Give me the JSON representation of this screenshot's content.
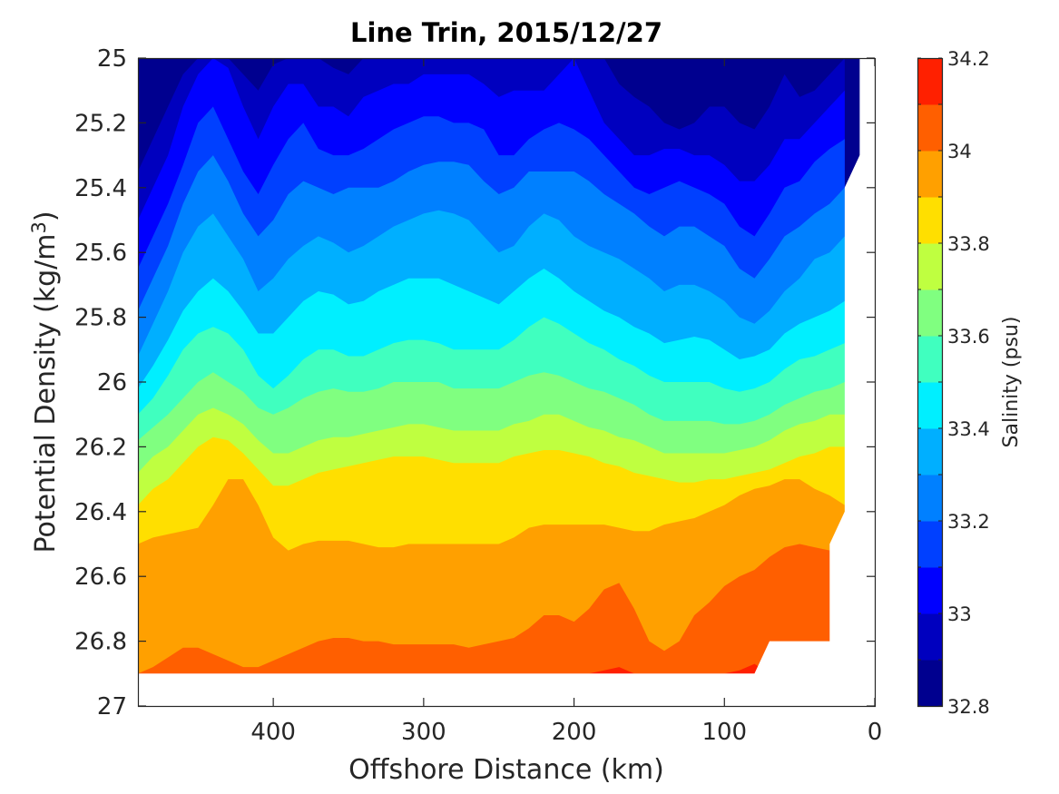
{
  "chart_data": {
    "type": "contour",
    "title": "Line Trin, 2015/12/27",
    "xlabel": "Offshore Distance (km)",
    "ylabel_main": "Potential Density (kg/m",
    "ylabel_sup": "3",
    "ylabel_close": ")",
    "xlim": [
      490,
      0
    ],
    "ylim": [
      25,
      27
    ],
    "x_ticks": [
      400,
      300,
      200,
      100,
      0
    ],
    "x_tick_labels": [
      "400",
      "300",
      "200",
      "100",
      "0"
    ],
    "y_ticks": [
      25,
      25.2,
      25.4,
      25.6,
      25.8,
      26,
      26.2,
      26.4,
      26.6,
      26.8,
      27
    ],
    "y_tick_labels": [
      "25",
      "25.2",
      "25.4",
      "25.6",
      "25.8",
      "26",
      "26.2",
      "26.4",
      "26.6",
      "26.8",
      "27"
    ],
    "y_reversed": true,
    "colorbar": {
      "label": "Salinity (psu)",
      "range": [
        32.8,
        34.2
      ],
      "step": 0.1,
      "tick_values": [
        34.2,
        34.0,
        33.8,
        33.6,
        33.4,
        33.2,
        33.0,
        32.8
      ],
      "tick_labels": [
        "34.2",
        "34",
        "33.8",
        "33.6",
        "33.4",
        "33.2",
        "33",
        "32.8"
      ],
      "colors": [
        "#00008f",
        "#0000bf",
        "#0000ff",
        "#0040ff",
        "#0080ff",
        "#00afff",
        "#00efff",
        "#40ffbf",
        "#80ff80",
        "#bfff40",
        "#ffdf00",
        "#ffa000",
        "#ff5f00",
        "#ff2000",
        "#bf0000"
      ]
    },
    "data_extent": {
      "x": [
        490,
        10
      ],
      "y_bottom_by_x": [
        [
          490,
          26.9
        ],
        [
          80,
          26.9
        ],
        [
          70,
          26.8
        ],
        [
          30,
          26.8
        ],
        [
          30,
          26.5
        ],
        [
          20,
          26.4
        ],
        [
          20,
          25.4
        ],
        [
          10,
          25.3
        ],
        [
          10,
          25
        ]
      ]
    },
    "x_distance": [
      490,
      480,
      470,
      460,
      450,
      440,
      430,
      420,
      410,
      400,
      390,
      380,
      370,
      360,
      350,
      340,
      330,
      320,
      310,
      300,
      290,
      280,
      270,
      260,
      250,
      240,
      230,
      220,
      210,
      200,
      190,
      180,
      170,
      160,
      150,
      140,
      130,
      120,
      110,
      100,
      90,
      80,
      70,
      60,
      50,
      40,
      30,
      20
    ],
    "isohaline_density": {
      "32.9": [
        25.35,
        25.25,
        25.15,
        25.05,
        25.0,
        25.0,
        25.0,
        25.05,
        25.1,
        25.02,
        25.0,
        25.0,
        25.0,
        25.03,
        25.05,
        25.0,
        25.0,
        25.0,
        25.0,
        25.0,
        25.0,
        25.0,
        25.0,
        25.0,
        25.0,
        25.0,
        25.0,
        25.0,
        25.0,
        25.0,
        25.0,
        25.0,
        25.08,
        25.12,
        25.15,
        25.2,
        25.22,
        25.2,
        25.15,
        25.15,
        25.2,
        25.22,
        25.15,
        25.05,
        25.12,
        25.1,
        25.05,
        25.0
      ],
      "33.0": [
        25.5,
        25.4,
        25.3,
        25.15,
        25.05,
        25.0,
        25.03,
        25.15,
        25.25,
        25.15,
        25.08,
        25.08,
        25.15,
        25.15,
        25.18,
        25.12,
        25.1,
        25.08,
        25.08,
        25.05,
        25.05,
        25.05,
        25.05,
        25.08,
        25.12,
        25.1,
        25.1,
        25.1,
        25.05,
        25.0,
        25.1,
        25.2,
        25.25,
        25.3,
        25.3,
        25.28,
        25.28,
        25.3,
        25.3,
        25.33,
        25.38,
        25.38,
        25.33,
        25.25,
        25.25,
        25.2,
        25.15,
        25.1
      ],
      "33.1": [
        25.65,
        25.55,
        25.45,
        25.33,
        25.2,
        25.15,
        25.25,
        25.35,
        25.42,
        25.33,
        25.25,
        25.2,
        25.28,
        25.3,
        25.3,
        25.28,
        25.25,
        25.22,
        25.2,
        25.18,
        25.18,
        25.2,
        25.2,
        25.22,
        25.3,
        25.3,
        25.25,
        25.22,
        25.2,
        25.22,
        25.25,
        25.3,
        25.35,
        25.4,
        25.42,
        25.4,
        25.38,
        25.4,
        25.42,
        25.45,
        25.52,
        25.55,
        25.48,
        25.4,
        25.38,
        25.32,
        25.28,
        25.25
      ],
      "33.2": [
        25.78,
        25.68,
        25.58,
        25.45,
        25.35,
        25.3,
        25.38,
        25.48,
        25.55,
        25.5,
        25.42,
        25.38,
        25.4,
        25.42,
        25.4,
        25.4,
        25.4,
        25.38,
        25.35,
        25.33,
        25.32,
        25.32,
        25.33,
        25.38,
        25.42,
        25.4,
        25.35,
        25.35,
        25.35,
        25.35,
        25.38,
        25.42,
        25.45,
        25.48,
        25.52,
        25.55,
        25.52,
        25.52,
        25.55,
        25.58,
        25.65,
        25.68,
        25.62,
        25.55,
        25.52,
        25.48,
        25.45,
        25.4
      ],
      "33.3": [
        25.92,
        25.82,
        25.72,
        25.6,
        25.52,
        25.48,
        25.55,
        25.62,
        25.72,
        25.68,
        25.62,
        25.58,
        25.55,
        25.57,
        25.6,
        25.58,
        25.55,
        25.52,
        25.5,
        25.48,
        25.47,
        25.48,
        25.5,
        25.55,
        25.6,
        25.58,
        25.52,
        25.48,
        25.5,
        25.55,
        25.58,
        25.6,
        25.62,
        25.65,
        25.68,
        25.72,
        25.7,
        25.7,
        25.72,
        25.75,
        25.8,
        25.82,
        25.78,
        25.72,
        25.68,
        25.62,
        25.6,
        25.55
      ],
      "33.4": [
        26.02,
        25.95,
        25.87,
        25.78,
        25.72,
        25.68,
        25.72,
        25.78,
        25.85,
        25.85,
        25.8,
        25.75,
        25.72,
        25.73,
        25.76,
        25.75,
        25.72,
        25.7,
        25.68,
        25.68,
        25.68,
        25.7,
        25.72,
        25.74,
        25.76,
        25.72,
        25.68,
        25.65,
        25.68,
        25.72,
        25.75,
        25.78,
        25.8,
        25.83,
        25.85,
        25.88,
        25.87,
        25.86,
        25.87,
        25.9,
        25.93,
        25.92,
        25.9,
        25.85,
        25.82,
        25.8,
        25.78,
        25.75
      ],
      "33.5": [
        26.1,
        26.05,
        25.98,
        25.9,
        25.85,
        25.83,
        25.85,
        25.9,
        25.98,
        26.02,
        25.98,
        25.93,
        25.9,
        25.9,
        25.92,
        25.92,
        25.9,
        25.88,
        25.87,
        25.87,
        25.88,
        25.9,
        25.9,
        25.9,
        25.9,
        25.87,
        25.83,
        25.8,
        25.82,
        25.85,
        25.88,
        25.9,
        25.93,
        25.95,
        25.98,
        26.0,
        26.0,
        26.0,
        26.0,
        26.02,
        26.03,
        26.02,
        26.0,
        25.96,
        25.93,
        25.92,
        25.9,
        25.88
      ],
      "33.6": [
        26.18,
        26.14,
        26.1,
        26.05,
        26.0,
        25.97,
        26.0,
        26.03,
        26.08,
        26.1,
        26.08,
        26.05,
        26.03,
        26.02,
        26.03,
        26.03,
        26.02,
        26.0,
        26.0,
        26.0,
        26.0,
        26.02,
        26.02,
        26.02,
        26.02,
        26.0,
        25.98,
        25.97,
        25.98,
        26.0,
        26.02,
        26.03,
        26.05,
        26.07,
        26.1,
        26.12,
        26.12,
        26.12,
        26.12,
        26.13,
        26.13,
        26.12,
        26.1,
        26.07,
        26.05,
        26.03,
        26.02,
        26.0
      ],
      "33.7": [
        26.28,
        26.23,
        26.2,
        26.15,
        26.1,
        26.08,
        26.1,
        26.13,
        26.18,
        26.22,
        26.22,
        26.2,
        26.18,
        26.17,
        26.17,
        26.16,
        26.15,
        26.14,
        26.13,
        26.13,
        26.14,
        26.15,
        26.15,
        26.15,
        26.15,
        26.13,
        26.12,
        26.1,
        26.1,
        26.12,
        26.14,
        26.15,
        26.17,
        26.18,
        26.2,
        26.22,
        26.22,
        26.22,
        26.22,
        26.22,
        26.21,
        26.2,
        26.18,
        26.15,
        26.13,
        26.12,
        26.1,
        26.1
      ],
      "33.8": [
        26.38,
        26.33,
        26.3,
        26.25,
        26.2,
        26.17,
        26.18,
        26.22,
        26.27,
        26.32,
        26.32,
        26.3,
        26.28,
        26.27,
        26.26,
        26.25,
        26.24,
        26.23,
        26.23,
        26.23,
        26.24,
        26.25,
        26.25,
        26.25,
        26.25,
        26.23,
        26.22,
        26.21,
        26.21,
        26.22,
        26.23,
        26.25,
        26.26,
        26.28,
        26.29,
        26.3,
        26.31,
        26.31,
        26.3,
        26.3,
        26.29,
        26.28,
        26.27,
        26.25,
        26.23,
        26.22,
        26.2,
        26.2
      ],
      "33.9": [
        26.5,
        26.48,
        26.47,
        26.46,
        26.45,
        26.38,
        26.3,
        26.3,
        26.38,
        26.48,
        26.52,
        26.5,
        26.49,
        26.49,
        26.49,
        26.5,
        26.51,
        26.51,
        26.5,
        26.5,
        26.5,
        26.5,
        26.5,
        26.5,
        26.5,
        26.48,
        26.45,
        26.44,
        26.44,
        26.44,
        26.44,
        26.44,
        26.45,
        26.46,
        26.46,
        26.44,
        26.43,
        26.42,
        26.4,
        26.38,
        26.35,
        26.33,
        26.32,
        26.3,
        26.3,
        26.33,
        26.35,
        26.38
      ],
      "34.0": [
        26.9,
        26.88,
        26.85,
        26.82,
        26.82,
        26.84,
        26.86,
        26.88,
        26.88,
        26.86,
        26.84,
        26.82,
        26.8,
        26.79,
        26.79,
        26.8,
        26.8,
        26.81,
        26.81,
        26.81,
        26.81,
        26.81,
        26.82,
        26.81,
        26.8,
        26.79,
        26.76,
        26.72,
        26.72,
        26.74,
        26.7,
        26.64,
        26.62,
        26.7,
        26.8,
        26.83,
        26.8,
        26.72,
        26.68,
        26.63,
        26.6,
        26.58,
        26.54,
        26.51,
        26.5,
        26.51,
        26.52,
        26.45
      ],
      "34.1": [
        26.9,
        26.9,
        26.9,
        26.9,
        26.9,
        26.9,
        26.9,
        26.9,
        26.9,
        26.9,
        26.9,
        26.9,
        26.9,
        26.9,
        26.9,
        26.9,
        26.9,
        26.9,
        26.9,
        26.9,
        26.9,
        26.9,
        26.9,
        26.9,
        26.9,
        26.9,
        26.9,
        26.9,
        26.9,
        26.9,
        26.9,
        26.89,
        26.88,
        26.9,
        26.9,
        26.9,
        26.9,
        26.9,
        26.9,
        26.9,
        26.89,
        26.87,
        26.9,
        26.9,
        26.9,
        26.9,
        26.9,
        26.9
      ]
    }
  }
}
